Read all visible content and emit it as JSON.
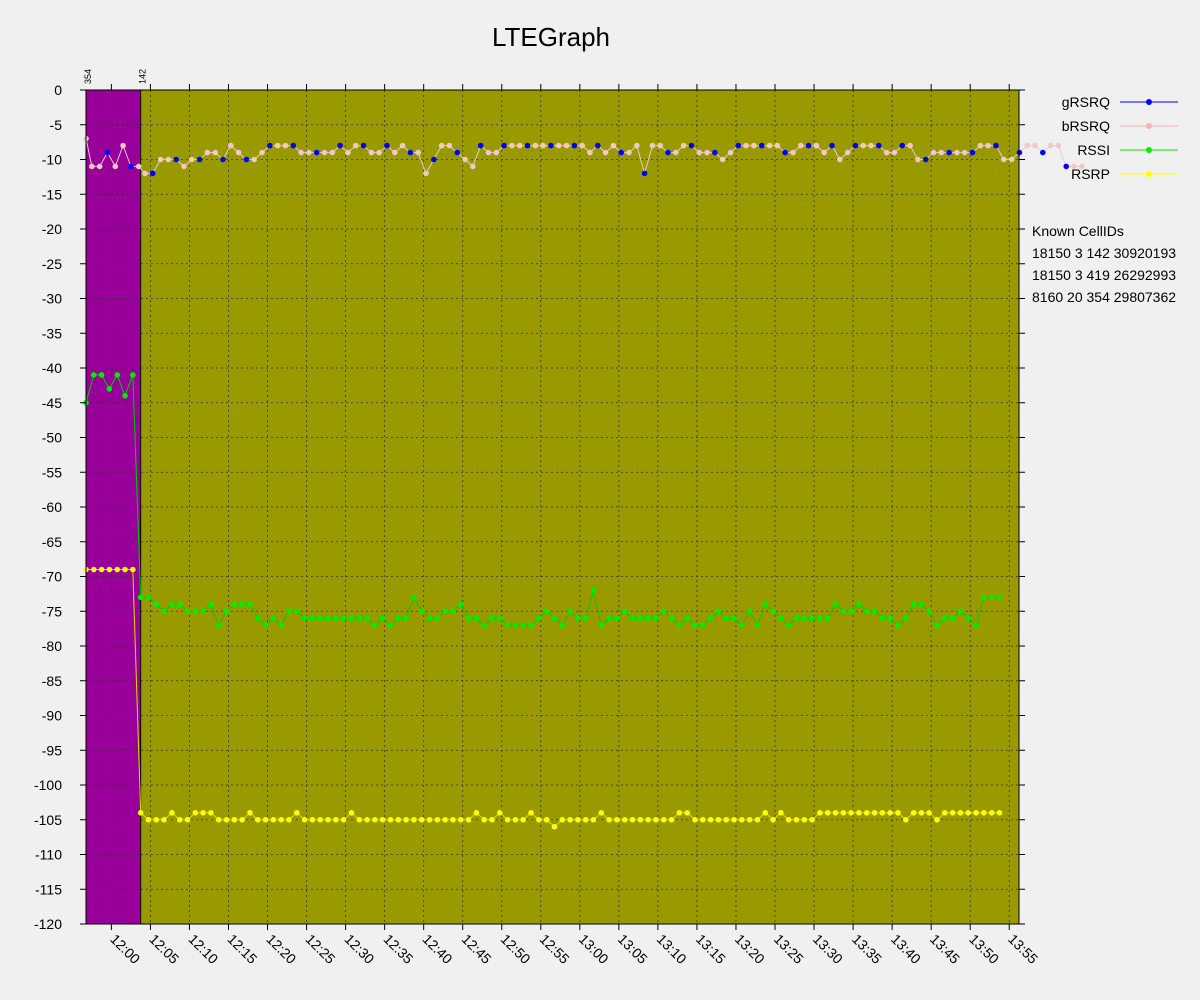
{
  "chart_data": {
    "type": "line",
    "title": "LTEGraph",
    "ylim": [
      -120,
      0
    ],
    "y_ticks": [
      0,
      -5,
      -10,
      -15,
      -20,
      -25,
      -30,
      -35,
      -40,
      -45,
      -50,
      -55,
      -60,
      -65,
      -70,
      -75,
      -80,
      -85,
      -90,
      -95,
      -100,
      -105,
      -110,
      -115,
      -120
    ],
    "x_ticks": [
      "12:00",
      "12:05",
      "12:10",
      "12:15",
      "12:20",
      "12:25",
      "12:30",
      "12:35",
      "12:40",
      "12:45",
      "12:50",
      "12:55",
      "13:00",
      "13:05",
      "13:10",
      "13:15",
      "13:20",
      "13:25",
      "13:30",
      "13:35",
      "13:40",
      "13:45",
      "13:50",
      "13:55"
    ],
    "x_start_min": 716.75,
    "x_end_min": 836.25,
    "cell_regions": [
      {
        "cell": "354",
        "start_min": 716.75,
        "end_min": 723.75,
        "color": "#990099"
      },
      {
        "cell": "142",
        "start_min": 723.75,
        "end_min": 836.25,
        "color": "#999900"
      }
    ],
    "grid": true,
    "legend_position": "top-right",
    "series": [
      {
        "name": "gRSRQ",
        "color": "#0000ff"
      },
      {
        "name": "bRSRQ",
        "color": "#ffb0b0"
      },
      {
        "name": "RSSI",
        "color": "#00ee00"
      },
      {
        "name": "RSRP",
        "color": "#ffff00"
      }
    ],
    "rsrq_pts": [
      [
        716.75,
        -7
      ],
      [
        717.5,
        -11
      ],
      [
        718.5,
        -11
      ],
      [
        719.5,
        -9
      ],
      [
        720.5,
        -11
      ],
      [
        721.5,
        -8
      ],
      [
        722.5,
        -11
      ],
      [
        723.5,
        -11
      ],
      [
        724.3,
        -12
      ],
      [
        725.3,
        -12
      ],
      [
        726.3,
        -10
      ],
      [
        727.3,
        -10
      ],
      [
        728.3,
        -10
      ],
      [
        729.3,
        -11
      ],
      [
        730.3,
        -10
      ],
      [
        731.3,
        -10
      ],
      [
        732.3,
        -9
      ],
      [
        733.3,
        -9
      ],
      [
        734.3,
        -10
      ],
      [
        735.3,
        -8
      ],
      [
        736.3,
        -9
      ],
      [
        737.3,
        -10
      ],
      [
        738.3,
        -10
      ],
      [
        739.3,
        -9
      ],
      [
        740.3,
        -8
      ],
      [
        741.3,
        -8
      ],
      [
        742.3,
        -8
      ],
      [
        743.3,
        -8
      ],
      [
        744.3,
        -9
      ],
      [
        745.3,
        -9
      ],
      [
        746.3,
        -9
      ],
      [
        747.3,
        -9
      ],
      [
        748.3,
        -9
      ],
      [
        749.3,
        -8
      ],
      [
        750.3,
        -9
      ],
      [
        751.3,
        -8
      ],
      [
        752.3,
        -8
      ],
      [
        753.3,
        -9
      ],
      [
        754.3,
        -9
      ],
      [
        755.3,
        -8
      ],
      [
        756.3,
        -9
      ],
      [
        757.3,
        -8
      ],
      [
        758.3,
        -9
      ],
      [
        759.3,
        -9
      ],
      [
        760.3,
        -12
      ],
      [
        761.3,
        -10
      ],
      [
        762.3,
        -8
      ],
      [
        763.3,
        -8
      ],
      [
        764.3,
        -9
      ],
      [
        765.3,
        -10
      ],
      [
        766.3,
        -11
      ],
      [
        767.3,
        -8
      ],
      [
        768.3,
        -9
      ],
      [
        769.3,
        -9
      ],
      [
        770.3,
        -8
      ],
      [
        771.3,
        -8
      ],
      [
        772.3,
        -8
      ],
      [
        773.3,
        -8
      ],
      [
        774.3,
        -8
      ],
      [
        775.3,
        -8
      ],
      [
        776.3,
        -8
      ],
      [
        777.3,
        -8
      ],
      [
        778.3,
        -8
      ],
      [
        779.3,
        -8
      ],
      [
        780.3,
        -8
      ],
      [
        781.3,
        -9
      ],
      [
        782.3,
        -8
      ],
      [
        783.3,
        -9
      ],
      [
        784.3,
        -8
      ],
      [
        785.3,
        -9
      ],
      [
        786.3,
        -9
      ],
      [
        787.3,
        -8
      ],
      [
        788.3,
        -12
      ],
      [
        789.3,
        -8
      ],
      [
        790.3,
        -8
      ],
      [
        791.3,
        -9
      ],
      [
        792.3,
        -9
      ],
      [
        793.3,
        -8
      ],
      [
        794.3,
        -8
      ],
      [
        795.3,
        -9
      ],
      [
        796.3,
        -9
      ],
      [
        797.3,
        -9
      ],
      [
        798.3,
        -10
      ],
      [
        799.3,
        -9
      ],
      [
        800.3,
        -8
      ],
      [
        801.3,
        -8
      ],
      [
        802.3,
        -8
      ],
      [
        803.3,
        -8
      ],
      [
        804.3,
        -8
      ],
      [
        805.3,
        -8
      ],
      [
        806.3,
        -9
      ],
      [
        807.3,
        -9
      ],
      [
        808.3,
        -8
      ],
      [
        809.3,
        -8
      ],
      [
        810.3,
        -8
      ],
      [
        811.3,
        -9
      ],
      [
        812.3,
        -8
      ],
      [
        813.3,
        -10
      ],
      [
        814.3,
        -9
      ],
      [
        815.3,
        -8
      ],
      [
        816.3,
        -8
      ],
      [
        817.3,
        -8
      ],
      [
        818.3,
        -8
      ],
      [
        819.3,
        -9
      ],
      [
        820.3,
        -9
      ],
      [
        821.3,
        -8
      ],
      [
        822.3,
        -8
      ],
      [
        823.3,
        -10
      ],
      [
        824.3,
        -10
      ],
      [
        825.3,
        -9
      ],
      [
        826.3,
        -9
      ],
      [
        827.3,
        -9
      ],
      [
        828.3,
        -9
      ],
      [
        829.3,
        -9
      ],
      [
        830.3,
        -9
      ],
      [
        831.3,
        -8
      ],
      [
        832.3,
        -8
      ],
      [
        833.3,
        -8
      ],
      [
        834.3,
        -10
      ],
      [
        835.3,
        -10
      ],
      [
        836.3,
        -9
      ],
      [
        837.3,
        -8
      ],
      [
        838.3,
        -8
      ],
      [
        839.3,
        -9
      ],
      [
        840.3,
        -8
      ],
      [
        841.3,
        -8
      ],
      [
        842.3,
        -11
      ],
      [
        843.3,
        -11
      ],
      [
        844.3,
        -11
      ]
    ],
    "rssi_pts": [
      [
        716.75,
        -45
      ],
      [
        717.75,
        -41
      ],
      [
        718.75,
        -41
      ],
      [
        719.75,
        -43
      ],
      [
        720.75,
        -41
      ],
      [
        721.75,
        -44
      ],
      [
        722.75,
        -41
      ],
      [
        723.75,
        -73
      ],
      [
        724.75,
        -73
      ],
      [
        725.75,
        -74
      ],
      [
        726.75,
        -75
      ],
      [
        727.75,
        -74
      ],
      [
        728.75,
        -74
      ],
      [
        729.75,
        -75
      ],
      [
        730.75,
        -75
      ],
      [
        731.75,
        -75
      ],
      [
        732.75,
        -74
      ],
      [
        733.75,
        -77
      ],
      [
        734.75,
        -75
      ],
      [
        735.75,
        -74
      ],
      [
        736.75,
        -74
      ],
      [
        737.75,
        -74
      ],
      [
        738.75,
        -76
      ],
      [
        739.75,
        -77
      ],
      [
        740.75,
        -76
      ],
      [
        741.75,
        -77
      ],
      [
        742.75,
        -75
      ],
      [
        743.75,
        -75
      ],
      [
        744.75,
        -76
      ],
      [
        745.75,
        -76
      ],
      [
        746.75,
        -76
      ],
      [
        747.75,
        -76
      ],
      [
        748.75,
        -76
      ],
      [
        749.75,
        -76
      ],
      [
        750.75,
        -76
      ],
      [
        751.75,
        -76
      ],
      [
        752.75,
        -76
      ],
      [
        753.75,
        -77
      ],
      [
        754.75,
        -76
      ],
      [
        755.75,
        -77
      ],
      [
        756.75,
        -76
      ],
      [
        757.75,
        -76
      ],
      [
        758.75,
        -73
      ],
      [
        759.75,
        -75
      ],
      [
        760.75,
        -76
      ],
      [
        761.75,
        -76
      ],
      [
        762.75,
        -75
      ],
      [
        763.75,
        -75
      ],
      [
        764.75,
        -74
      ],
      [
        765.75,
        -76
      ],
      [
        766.75,
        -76
      ],
      [
        767.75,
        -77
      ],
      [
        768.75,
        -76
      ],
      [
        769.75,
        -76
      ],
      [
        770.75,
        -77
      ],
      [
        771.75,
        -77
      ],
      [
        772.75,
        -77
      ],
      [
        773.75,
        -77
      ],
      [
        774.75,
        -76
      ],
      [
        775.75,
        -75
      ],
      [
        776.75,
        -76
      ],
      [
        777.75,
        -77
      ],
      [
        778.75,
        -75
      ],
      [
        779.75,
        -76
      ],
      [
        780.75,
        -76
      ],
      [
        781.75,
        -72
      ],
      [
        782.75,
        -77
      ],
      [
        783.75,
        -76
      ],
      [
        784.75,
        -76
      ],
      [
        785.75,
        -75
      ],
      [
        786.75,
        -76
      ],
      [
        787.75,
        -76
      ],
      [
        788.75,
        -76
      ],
      [
        789.75,
        -76
      ],
      [
        790.75,
        -75
      ],
      [
        791.75,
        -76
      ],
      [
        792.75,
        -77
      ],
      [
        793.75,
        -76
      ],
      [
        794.75,
        -77
      ],
      [
        795.75,
        -77
      ],
      [
        796.75,
        -76
      ],
      [
        797.75,
        -75
      ],
      [
        798.75,
        -76
      ],
      [
        799.75,
        -76
      ],
      [
        800.75,
        -77
      ],
      [
        801.75,
        -75
      ],
      [
        802.75,
        -77
      ],
      [
        803.75,
        -74
      ],
      [
        804.75,
        -75
      ],
      [
        805.75,
        -76
      ],
      [
        806.75,
        -77
      ],
      [
        807.75,
        -76
      ],
      [
        808.75,
        -76
      ],
      [
        809.75,
        -76
      ],
      [
        810.75,
        -76
      ],
      [
        811.75,
        -76
      ],
      [
        812.75,
        -74
      ],
      [
        813.75,
        -75
      ],
      [
        814.75,
        -75
      ],
      [
        815.75,
        -74
      ],
      [
        816.75,
        -75
      ],
      [
        817.75,
        -75
      ],
      [
        818.75,
        -76
      ],
      [
        819.75,
        -76
      ],
      [
        820.75,
        -77
      ],
      [
        821.75,
        -76
      ],
      [
        822.75,
        -74
      ],
      [
        823.75,
        -74
      ],
      [
        824.75,
        -75
      ],
      [
        825.75,
        -77
      ],
      [
        826.75,
        -76
      ],
      [
        827.75,
        -76
      ],
      [
        828.75,
        -75
      ],
      [
        829.75,
        -76
      ],
      [
        830.75,
        -77
      ],
      [
        831.75,
        -73
      ],
      [
        832.75,
        -73
      ],
      [
        833.75,
        -73
      ]
    ],
    "rsrp_pts": [
      [
        716.75,
        -69
      ],
      [
        717.75,
        -69
      ],
      [
        718.75,
        -69
      ],
      [
        719.75,
        -69
      ],
      [
        720.75,
        -69
      ],
      [
        721.75,
        -69
      ],
      [
        722.75,
        -69
      ],
      [
        723.75,
        -104
      ],
      [
        724.75,
        -105
      ],
      [
        725.75,
        -105
      ],
      [
        726.75,
        -105
      ],
      [
        727.75,
        -104
      ],
      [
        728.75,
        -105
      ],
      [
        729.75,
        -105
      ],
      [
        730.75,
        -104
      ],
      [
        731.75,
        -104
      ],
      [
        732.75,
        -104
      ],
      [
        733.75,
        -105
      ],
      [
        734.75,
        -105
      ],
      [
        735.75,
        -105
      ],
      [
        736.75,
        -105
      ],
      [
        737.75,
        -104
      ],
      [
        738.75,
        -105
      ],
      [
        739.75,
        -105
      ],
      [
        740.75,
        -105
      ],
      [
        741.75,
        -105
      ],
      [
        742.75,
        -105
      ],
      [
        743.75,
        -104
      ],
      [
        744.75,
        -105
      ],
      [
        745.75,
        -105
      ],
      [
        746.75,
        -105
      ],
      [
        747.75,
        -105
      ],
      [
        748.75,
        -105
      ],
      [
        749.75,
        -105
      ],
      [
        750.75,
        -104
      ],
      [
        751.75,
        -105
      ],
      [
        752.75,
        -105
      ],
      [
        753.75,
        -105
      ],
      [
        754.75,
        -105
      ],
      [
        755.75,
        -105
      ],
      [
        756.75,
        -105
      ],
      [
        757.75,
        -105
      ],
      [
        758.75,
        -105
      ],
      [
        759.75,
        -105
      ],
      [
        760.75,
        -105
      ],
      [
        761.75,
        -105
      ],
      [
        762.75,
        -105
      ],
      [
        763.75,
        -105
      ],
      [
        764.75,
        -105
      ],
      [
        765.75,
        -105
      ],
      [
        766.75,
        -104
      ],
      [
        767.75,
        -105
      ],
      [
        768.75,
        -105
      ],
      [
        769.75,
        -104
      ],
      [
        770.75,
        -105
      ],
      [
        771.75,
        -105
      ],
      [
        772.75,
        -105
      ],
      [
        773.75,
        -104
      ],
      [
        774.75,
        -105
      ],
      [
        775.75,
        -105
      ],
      [
        776.75,
        -106
      ],
      [
        777.75,
        -105
      ],
      [
        778.75,
        -105
      ],
      [
        779.75,
        -105
      ],
      [
        780.75,
        -105
      ],
      [
        781.75,
        -105
      ],
      [
        782.75,
        -104
      ],
      [
        783.75,
        -105
      ],
      [
        784.75,
        -105
      ],
      [
        785.75,
        -105
      ],
      [
        786.75,
        -105
      ],
      [
        787.75,
        -105
      ],
      [
        788.75,
        -105
      ],
      [
        789.75,
        -105
      ],
      [
        790.75,
        -105
      ],
      [
        791.75,
        -105
      ],
      [
        792.75,
        -104
      ],
      [
        793.75,
        -104
      ],
      [
        794.75,
        -105
      ],
      [
        795.75,
        -105
      ],
      [
        796.75,
        -105
      ],
      [
        797.75,
        -105
      ],
      [
        798.75,
        -105
      ],
      [
        799.75,
        -105
      ],
      [
        800.75,
        -105
      ],
      [
        801.75,
        -105
      ],
      [
        802.75,
        -105
      ],
      [
        803.75,
        -104
      ],
      [
        804.75,
        -105
      ],
      [
        805.75,
        -104
      ],
      [
        806.75,
        -105
      ],
      [
        807.75,
        -105
      ],
      [
        808.75,
        -105
      ],
      [
        809.75,
        -105
      ],
      [
        810.75,
        -104
      ],
      [
        811.75,
        -104
      ],
      [
        812.75,
        -104
      ],
      [
        813.75,
        -104
      ],
      [
        814.75,
        -104
      ],
      [
        815.75,
        -104
      ],
      [
        816.75,
        -104
      ],
      [
        817.75,
        -104
      ],
      [
        818.75,
        -104
      ],
      [
        819.75,
        -104
      ],
      [
        820.75,
        -104
      ],
      [
        821.75,
        -105
      ],
      [
        822.75,
        -104
      ],
      [
        823.75,
        -104
      ],
      [
        824.75,
        -104
      ],
      [
        825.75,
        -105
      ],
      [
        826.75,
        -104
      ],
      [
        827.75,
        -104
      ],
      [
        828.75,
        -104
      ],
      [
        829.75,
        -104
      ],
      [
        830.75,
        -104
      ],
      [
        831.75,
        -104
      ],
      [
        832.75,
        -104
      ],
      [
        833.75,
        -104
      ]
    ]
  },
  "known_cellids": {
    "title": "Known CellIDs",
    "items": [
      "18150 3 142 30920193",
      "18150 3 419 26292993",
      "8160 20 354 29807362"
    ]
  }
}
